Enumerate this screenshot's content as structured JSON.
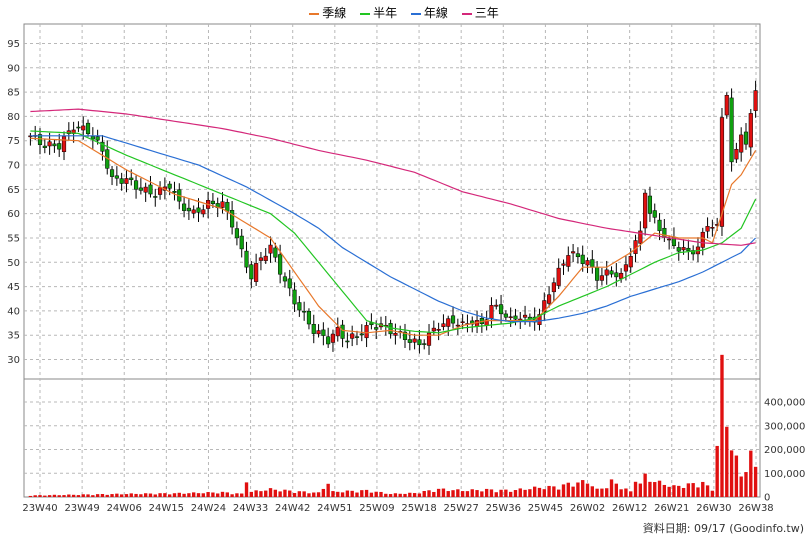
{
  "legend": [
    {
      "name": "季線",
      "color": "#e8782b"
    },
    {
      "name": "半年",
      "color": "#22c522"
    },
    {
      "name": "年線",
      "color": "#2a6fd4"
    },
    {
      "name": "三年",
      "color": "#d4287a"
    }
  ],
  "footer": "資料日期: 09/17 (Goodinfo.tw)",
  "colors": {
    "up": "#e01010",
    "down": "#10a010",
    "volume": "#e01010",
    "grid": "#b8b8b8"
  },
  "chart_data": {
    "type": "candlestick",
    "price_axis": {
      "min": 26,
      "max": 99,
      "ticks": [
        30,
        35,
        40,
        45,
        50,
        55,
        60,
        65,
        70,
        75,
        80,
        85,
        90,
        95
      ]
    },
    "volume_axis": {
      "min": 0,
      "max": 480000,
      "ticks": [
        0,
        100000,
        200000,
        300000,
        400000
      ],
      "tick_labels": [
        "0",
        "100,000",
        "200,000",
        "300,000",
        "400,000"
      ]
    },
    "x_labels": [
      "23W40",
      "23W49",
      "24W06",
      "24W15",
      "24W24",
      "24W33",
      "24W42",
      "24W51",
      "25W09",
      "25W18",
      "25W27",
      "25W36",
      "25W45",
      "26W02",
      "26W12",
      "26W21",
      "26W30",
      "26W38"
    ],
    "close_anchors": [
      [
        0,
        76
      ],
      [
        3,
        74
      ],
      [
        6,
        74
      ],
      [
        9,
        78
      ],
      [
        12,
        77
      ],
      [
        15,
        73
      ],
      [
        17,
        67
      ],
      [
        20,
        67
      ],
      [
        23,
        65
      ],
      [
        26,
        64
      ],
      [
        29,
        66
      ],
      [
        31,
        62
      ],
      [
        34,
        60
      ],
      [
        37,
        62
      ],
      [
        40,
        62
      ],
      [
        42,
        58
      ],
      [
        44,
        52
      ],
      [
        46,
        47
      ],
      [
        48,
        51
      ],
      [
        50,
        53
      ],
      [
        53,
        46
      ],
      [
        55,
        42
      ],
      [
        57,
        39
      ],
      [
        59,
        36
      ],
      [
        62,
        34
      ],
      [
        64,
        36
      ],
      [
        66,
        34
      ],
      [
        68,
        35
      ],
      [
        71,
        37
      ],
      [
        73,
        37
      ],
      [
        75,
        36
      ],
      [
        77,
        35
      ],
      [
        79,
        34
      ],
      [
        81,
        33
      ],
      [
        83,
        35
      ],
      [
        85,
        37
      ],
      [
        88,
        38
      ],
      [
        90,
        37
      ],
      [
        92,
        38
      ],
      [
        94,
        37
      ],
      [
        96,
        41
      ],
      [
        98,
        40
      ],
      [
        100,
        38
      ],
      [
        102,
        39
      ],
      [
        104,
        38
      ],
      [
        106,
        39
      ],
      [
        108,
        44
      ],
      [
        110,
        48
      ],
      [
        112,
        52
      ],
      [
        114,
        51
      ],
      [
        116,
        50
      ],
      [
        118,
        47
      ],
      [
        121,
        48
      ],
      [
        123,
        47
      ],
      [
        125,
        52
      ],
      [
        127,
        56
      ],
      [
        128,
        65
      ],
      [
        129,
        60
      ],
      [
        131,
        57
      ],
      [
        133,
        54
      ],
      [
        135,
        53
      ],
      [
        137,
        52
      ],
      [
        139,
        53
      ],
      [
        141,
        58
      ],
      [
        143,
        57
      ],
      [
        144,
        80
      ],
      [
        145,
        85
      ],
      [
        146,
        70
      ],
      [
        147,
        73
      ],
      [
        148,
        77
      ],
      [
        149,
        74
      ],
      [
        150,
        80
      ],
      [
        151,
        86
      ]
    ],
    "volume_anchors": [
      [
        0,
        6000
      ],
      [
        10,
        9000
      ],
      [
        20,
        12000
      ],
      [
        30,
        14000
      ],
      [
        35,
        16000
      ],
      [
        40,
        18000
      ],
      [
        44,
        12000
      ],
      [
        45,
        70000
      ],
      [
        46,
        20000
      ],
      [
        50,
        30000
      ],
      [
        55,
        22000
      ],
      [
        60,
        16000
      ],
      [
        62,
        55000
      ],
      [
        63,
        20000
      ],
      [
        70,
        25000
      ],
      [
        75,
        12000
      ],
      [
        80,
        15000
      ],
      [
        85,
        30000
      ],
      [
        90,
        25000
      ],
      [
        95,
        28000
      ],
      [
        100,
        25000
      ],
      [
        105,
        35000
      ],
      [
        110,
        40000
      ],
      [
        112,
        50000
      ],
      [
        116,
        60000
      ],
      [
        118,
        28000
      ],
      [
        120,
        40000
      ],
      [
        121,
        60000
      ],
      [
        125,
        20000
      ],
      [
        126,
        80000
      ],
      [
        127,
        50000
      ],
      [
        128,
        80000
      ],
      [
        130,
        60000
      ],
      [
        134,
        40000
      ],
      [
        136,
        45000
      ],
      [
        140,
        55000
      ],
      [
        141,
        40000
      ],
      [
        142,
        30000
      ],
      [
        143,
        200000
      ],
      [
        144,
        480000
      ],
      [
        145,
        300000
      ],
      [
        146,
        200000
      ],
      [
        147,
        140000
      ],
      [
        148,
        80000
      ],
      [
        149,
        120000
      ],
      [
        150,
        160000
      ],
      [
        151,
        110000
      ]
    ],
    "moving_averages": [
      {
        "name": "季線",
        "values_at": [
          [
            0,
            75.5
          ],
          [
            10,
            75
          ],
          [
            20,
            69
          ],
          [
            30,
            64
          ],
          [
            40,
            61
          ],
          [
            50,
            55
          ],
          [
            55,
            48
          ],
          [
            60,
            41
          ],
          [
            65,
            36
          ],
          [
            70,
            35.5
          ],
          [
            75,
            36
          ],
          [
            80,
            35
          ],
          [
            85,
            35
          ],
          [
            90,
            37
          ],
          [
            95,
            38
          ],
          [
            100,
            38
          ],
          [
            105,
            38
          ],
          [
            110,
            43
          ],
          [
            115,
            49
          ],
          [
            120,
            49
          ],
          [
            125,
            52
          ],
          [
            130,
            56
          ],
          [
            135,
            55
          ],
          [
            140,
            55
          ],
          [
            142,
            54
          ],
          [
            144,
            60
          ],
          [
            146,
            66
          ],
          [
            148,
            68
          ],
          [
            151,
            73
          ]
        ]
      },
      {
        "name": "半年",
        "values_at": [
          [
            0,
            77
          ],
          [
            10,
            76.5
          ],
          [
            20,
            72
          ],
          [
            30,
            68
          ],
          [
            40,
            64
          ],
          [
            50,
            60
          ],
          [
            55,
            56
          ],
          [
            60,
            50
          ],
          [
            65,
            44
          ],
          [
            70,
            38
          ],
          [
            75,
            36.5
          ],
          [
            80,
            35.8
          ],
          [
            85,
            35.5
          ],
          [
            90,
            36.5
          ],
          [
            95,
            37
          ],
          [
            100,
            37.5
          ],
          [
            105,
            38.5
          ],
          [
            110,
            41
          ],
          [
            115,
            43
          ],
          [
            120,
            45
          ],
          [
            125,
            47.5
          ],
          [
            130,
            50
          ],
          [
            135,
            52
          ],
          [
            140,
            52.5
          ],
          [
            144,
            54
          ],
          [
            148,
            57
          ],
          [
            151,
            63
          ]
        ]
      },
      {
        "name": "年線",
        "values_at": [
          [
            0,
            76
          ],
          [
            15,
            76
          ],
          [
            25,
            73
          ],
          [
            35,
            70
          ],
          [
            45,
            65.5
          ],
          [
            55,
            60
          ],
          [
            60,
            57
          ],
          [
            65,
            53
          ],
          [
            70,
            50
          ],
          [
            75,
            47
          ],
          [
            80,
            44.5
          ],
          [
            85,
            42
          ],
          [
            90,
            40
          ],
          [
            95,
            38.5
          ],
          [
            100,
            37.8
          ],
          [
            105,
            37.8
          ],
          [
            110,
            38.5
          ],
          [
            115,
            39.5
          ],
          [
            120,
            41
          ],
          [
            125,
            43
          ],
          [
            130,
            44.5
          ],
          [
            135,
            46
          ],
          [
            140,
            48
          ],
          [
            144,
            50
          ],
          [
            148,
            52
          ],
          [
            151,
            55
          ]
        ]
      },
      {
        "name": "三年",
        "values_at": [
          [
            0,
            81
          ],
          [
            10,
            81.5
          ],
          [
            20,
            80.5
          ],
          [
            30,
            79
          ],
          [
            40,
            77.5
          ],
          [
            50,
            75.5
          ],
          [
            60,
            73
          ],
          [
            70,
            71
          ],
          [
            80,
            68.5
          ],
          [
            90,
            64.5
          ],
          [
            100,
            62
          ],
          [
            110,
            59
          ],
          [
            120,
            57
          ],
          [
            130,
            55.5
          ],
          [
            140,
            54
          ],
          [
            148,
            53.5
          ],
          [
            151,
            54
          ]
        ]
      }
    ],
    "y_axis_side": "left",
    "volume_axis_side": "right",
    "grid": true
  }
}
